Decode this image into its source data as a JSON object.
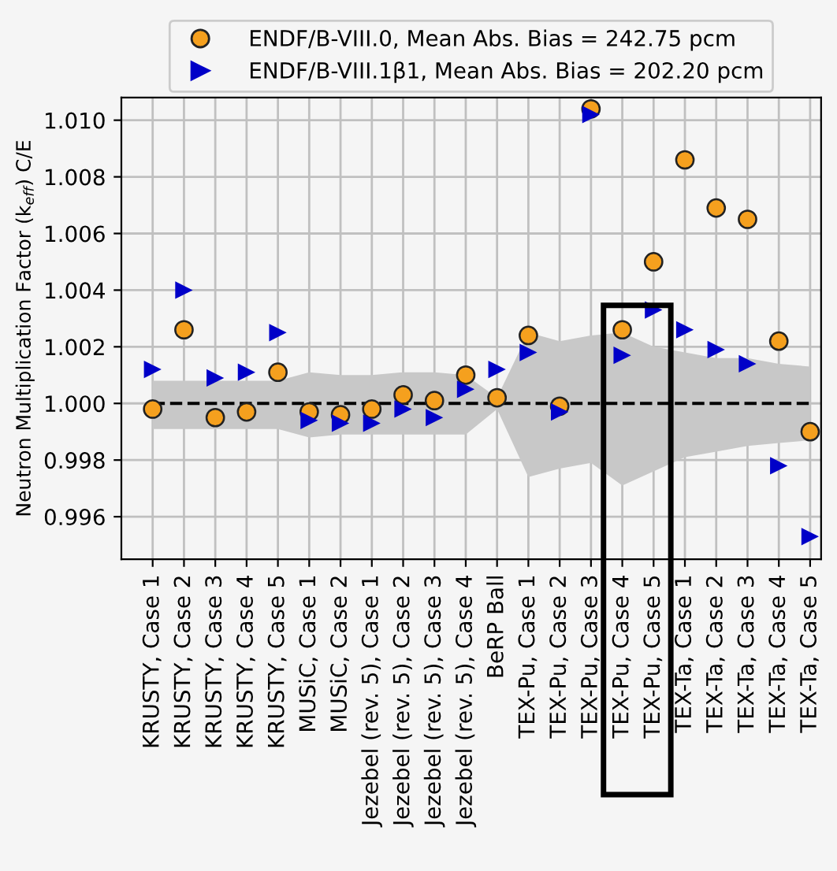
{
  "chart_data": {
    "type": "scatter",
    "categories": [
      "KRUSTY, Case 1",
      "KRUSTY, Case 2",
      "KRUSTY, Case 3",
      "KRUSTY, Case 4",
      "KRUSTY, Case 5",
      "MUSiC, Case 1",
      "MUSiC, Case 2",
      "Jezebel (rev. 5), Case 1",
      "Jezebel (rev. 5), Case 2",
      "Jezebel (rev. 5), Case 3",
      "Jezebel (rev. 5), Case 4",
      "BeRP Ball",
      "TEX-Pu, Case 1",
      "TEX-Pu, Case 2",
      "TEX-Pu, Case 3",
      "TEX-Pu, Case 4",
      "TEX-Pu, Case 5",
      "TEX-Ta, Case 1",
      "TEX-Ta, Case 2",
      "TEX-Ta, Case 3",
      "TEX-Ta, Case 4",
      "TEX-Ta, Case 5"
    ],
    "ylabel": "Neutron Multiplication Factor (k$_{eff}$) C/E",
    "series": [
      {
        "type": "line",
        "color": "#000000",
        "line_style": "dashed",
        "values": [
          1.0,
          1.0,
          1.0,
          1.0,
          1.0,
          1.0,
          1.0,
          1.0,
          1.0,
          1.0,
          1.0,
          1.0,
          1.0,
          1.0,
          1.0,
          1.0,
          1.0,
          1.0,
          1.0,
          1.0,
          1.0,
          1.0
        ],
        "lower": [
          0.9991,
          0.9991,
          0.9991,
          0.9991,
          0.9991,
          0.9988,
          0.9989,
          0.9989,
          0.9989,
          0.9989,
          0.9989,
          0.9998,
          0.9974,
          0.9977,
          0.9979,
          0.9971,
          0.9976,
          0.9981,
          0.9983,
          0.9985,
          0.9986,
          0.9987
        ],
        "upper": [
          1.0008,
          1.0008,
          1.0008,
          1.0008,
          1.0008,
          1.0011,
          1.001,
          1.001,
          1.0011,
          1.0011,
          1.001,
          1.0002,
          1.0025,
          1.0022,
          1.0024,
          1.0025,
          1.002,
          1.0018,
          1.0016,
          1.0016,
          1.0014,
          1.0013
        ]
      },
      {
        "name": "ENDF/B-VIII.0, Mean Abs. Bias = 242.75 pcm",
        "color": "#f5a01e",
        "marker": "circle",
        "values": [
          0.9998,
          1.0026,
          0.9995,
          0.9997,
          1.0011,
          0.9997,
          0.9996,
          0.9998,
          1.0003,
          1.0001,
          1.001,
          1.0002,
          1.0024,
          0.9999,
          1.0104,
          1.0026,
          1.005,
          1.0086,
          1.0069,
          1.0065,
          1.0022,
          0.999
        ]
      },
      {
        "name": "ENDF/B-VIII.1β1, Mean Abs. Bias = 202.20 pcm",
        "color": "#0000c8",
        "marker": "triangle",
        "values": [
          1.0012,
          1.004,
          1.0009,
          1.0011,
          1.0025,
          0.9994,
          0.9993,
          0.9993,
          0.9998,
          0.9995,
          1.0005,
          1.0012,
          1.0018,
          0.9997,
          1.0102,
          1.0017,
          1.0033,
          1.0026,
          1.0019,
          1.0014,
          0.9978,
          0.9953
        ]
      }
    ],
    "ylim": [
      0.9945,
      1.0108
    ],
    "yticks": [
      {
        "value": 0.996,
        "label": "0.996"
      },
      {
        "value": 0.998,
        "label": "0.998"
      },
      {
        "value": 1.0,
        "label": "1.000"
      },
      {
        "value": 1.002,
        "label": "1.002"
      },
      {
        "value": 1.004,
        "label": "1.004"
      },
      {
        "value": 1.006,
        "label": "1.006"
      },
      {
        "value": 1.008,
        "label": "1.008"
      },
      {
        "value": 1.01,
        "label": "1.010"
      }
    ],
    "grid": true,
    "legend": "top"
  }
}
